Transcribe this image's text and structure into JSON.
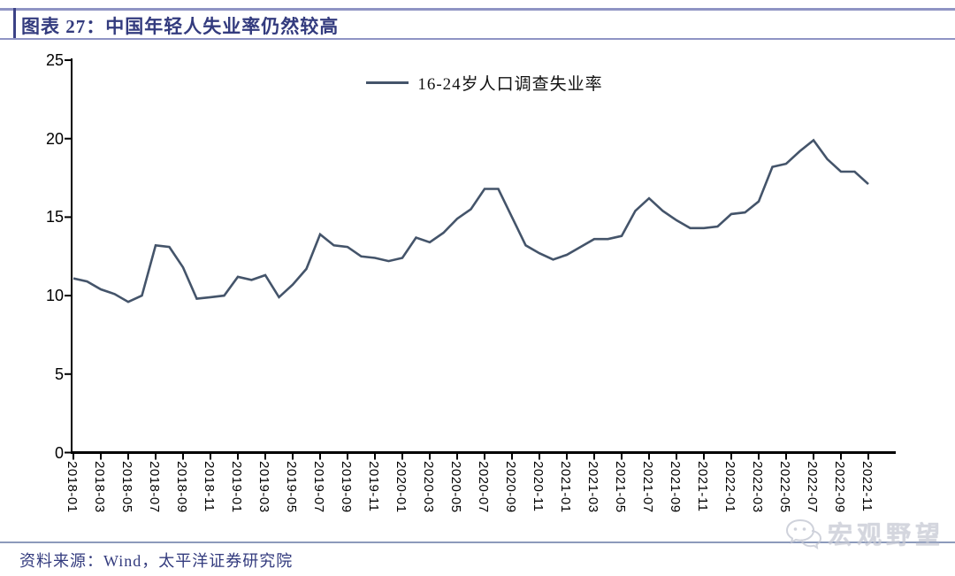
{
  "header": {
    "title": "图表 27：中国年轻人失业率仍然较高"
  },
  "legend": {
    "label": "16-24岁人口调查失业率"
  },
  "source": {
    "label": "资料来源：Wind，太平洋证券研究院"
  },
  "watermark": {
    "label": "宏观野望",
    "icon": "wechat-icon"
  },
  "colors": {
    "line": "#44546a",
    "axis": "#000000",
    "title": "#333b7e",
    "rule": "#8f94c4"
  },
  "chart_data": {
    "type": "line",
    "title": "图表 27：中国年轻人失业率仍然较高",
    "xlabel": "",
    "ylabel": "",
    "ylim": [
      0,
      25
    ],
    "yticks": [
      0,
      5,
      10,
      15,
      20,
      25
    ],
    "grid": false,
    "legend_position": "top-center",
    "x": [
      "2018-01",
      "2018-02",
      "2018-03",
      "2018-04",
      "2018-05",
      "2018-06",
      "2018-07",
      "2018-08",
      "2018-09",
      "2018-10",
      "2018-11",
      "2018-12",
      "2019-01",
      "2019-02",
      "2019-03",
      "2019-04",
      "2019-05",
      "2019-06",
      "2019-07",
      "2019-08",
      "2019-09",
      "2019-10",
      "2019-11",
      "2019-12",
      "2020-01",
      "2020-02",
      "2020-03",
      "2020-04",
      "2020-05",
      "2020-06",
      "2020-07",
      "2020-08",
      "2020-09",
      "2020-10",
      "2020-11",
      "2020-12",
      "2021-01",
      "2021-02",
      "2021-03",
      "2021-04",
      "2021-05",
      "2021-06",
      "2021-07",
      "2021-08",
      "2021-09",
      "2021-10",
      "2021-11",
      "2021-12",
      "2022-01",
      "2022-02",
      "2022-03",
      "2022-04",
      "2022-05",
      "2022-06",
      "2022-07",
      "2022-08",
      "2022-09",
      "2022-10",
      "2022-11"
    ],
    "x_tick_labels": [
      "2018-01",
      "2018-03",
      "2018-05",
      "2018-07",
      "2018-09",
      "2018-11",
      "2019-01",
      "2019-03",
      "2019-05",
      "2019-07",
      "2019-09",
      "2019-11",
      "2020-01",
      "2020-03",
      "2020-05",
      "2020-07",
      "2020-09",
      "2020-11",
      "2021-01",
      "2021-03",
      "2021-05",
      "2021-07",
      "2021-09",
      "2021-11",
      "2022-01",
      "2022-03",
      "2022-05",
      "2022-07",
      "2022-09",
      "2022-11"
    ],
    "series": [
      {
        "name": "16-24岁人口调查失业率",
        "color": "#44546a",
        "values": [
          11.1,
          10.9,
          10.4,
          10.1,
          9.6,
          10.0,
          13.2,
          13.1,
          11.8,
          9.8,
          9.9,
          10.0,
          11.2,
          11.0,
          11.3,
          9.9,
          10.7,
          11.7,
          13.9,
          13.2,
          13.1,
          12.5,
          12.4,
          12.2,
          12.4,
          13.7,
          13.4,
          14.0,
          14.9,
          15.5,
          16.8,
          16.8,
          15.0,
          13.2,
          12.7,
          12.3,
          12.6,
          13.1,
          13.6,
          13.6,
          13.8,
          15.4,
          16.2,
          15.4,
          14.8,
          14.3,
          14.3,
          14.4,
          15.2,
          15.3,
          16.0,
          18.2,
          18.4,
          19.2,
          19.9,
          18.7,
          17.9,
          17.9,
          17.1
        ]
      }
    ]
  }
}
